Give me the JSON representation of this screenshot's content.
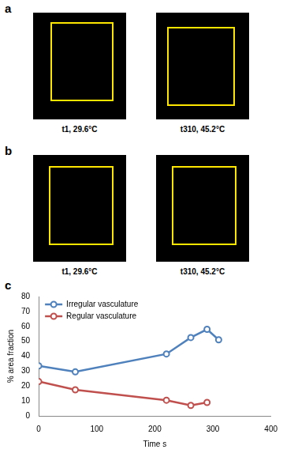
{
  "figure": {
    "panels": [
      {
        "letter": "a",
        "images": [
          {
            "caption": "t1, 29.6°C"
          },
          {
            "caption": "t310, 45.2°C"
          }
        ]
      },
      {
        "letter": "b",
        "images": [
          {
            "caption": "t1, 29.6°C"
          },
          {
            "caption": "t310, 45.2°C"
          }
        ]
      },
      {
        "letter": "c"
      }
    ]
  },
  "chart_data": {
    "type": "line",
    "x_label": "Time s",
    "y_label": "% area fraction",
    "xlim": [
      0,
      400
    ],
    "xticks": [
      0,
      100,
      200,
      300,
      400
    ],
    "ylim": [
      0,
      80
    ],
    "yticks": [
      0,
      10,
      20,
      30,
      40,
      50,
      60,
      70,
      80
    ],
    "grid": false,
    "legend": "upper left",
    "series": [
      {
        "name": "Irregular vasculature",
        "color": "#4f81bd",
        "marker": "circle",
        "x": [
          0,
          63,
          220,
          262,
          290,
          310
        ],
        "values": [
          33.5,
          29.5,
          41.5,
          52.5,
          58,
          51
        ]
      },
      {
        "name": "Regular vasculature",
        "color": "#c0504d",
        "marker": "circle",
        "x": [
          0,
          63,
          220,
          262,
          290
        ],
        "values": [
          23,
          17.5,
          10.5,
          7,
          9
        ]
      }
    ]
  }
}
